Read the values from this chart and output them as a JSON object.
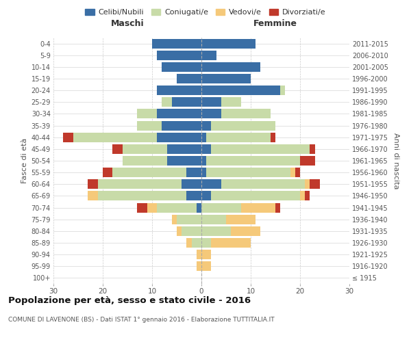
{
  "age_groups": [
    "100+",
    "95-99",
    "90-94",
    "85-89",
    "80-84",
    "75-79",
    "70-74",
    "65-69",
    "60-64",
    "55-59",
    "50-54",
    "45-49",
    "40-44",
    "35-39",
    "30-34",
    "25-29",
    "20-24",
    "15-19",
    "10-14",
    "5-9",
    "0-4"
  ],
  "birth_years": [
    "≤ 1915",
    "1916-1920",
    "1921-1925",
    "1926-1930",
    "1931-1935",
    "1936-1940",
    "1941-1945",
    "1946-1950",
    "1951-1955",
    "1956-1960",
    "1961-1965",
    "1966-1970",
    "1971-1975",
    "1976-1980",
    "1981-1985",
    "1986-1990",
    "1991-1995",
    "1996-2000",
    "2001-2005",
    "2006-2010",
    "2011-2015"
  ],
  "males": {
    "celibi": [
      0,
      0,
      0,
      0,
      0,
      0,
      1,
      3,
      4,
      3,
      7,
      7,
      9,
      8,
      9,
      6,
      9,
      5,
      8,
      9,
      10
    ],
    "coniugati": [
      0,
      0,
      0,
      2,
      4,
      5,
      8,
      18,
      17,
      15,
      9,
      9,
      17,
      5,
      4,
      2,
      0,
      0,
      0,
      0,
      0
    ],
    "vedovi": [
      0,
      1,
      1,
      1,
      1,
      1,
      2,
      2,
      0,
      0,
      0,
      0,
      0,
      0,
      0,
      0,
      0,
      0,
      0,
      0,
      0
    ],
    "divorziati": [
      0,
      0,
      0,
      0,
      0,
      0,
      2,
      0,
      2,
      2,
      0,
      2,
      2,
      0,
      0,
      0,
      0,
      0,
      0,
      0,
      0
    ]
  },
  "females": {
    "nubili": [
      0,
      0,
      0,
      0,
      0,
      0,
      0,
      2,
      4,
      1,
      1,
      2,
      1,
      2,
      4,
      4,
      16,
      10,
      12,
      3,
      11
    ],
    "coniugate": [
      0,
      0,
      0,
      2,
      6,
      5,
      8,
      18,
      17,
      17,
      19,
      20,
      13,
      13,
      10,
      4,
      1,
      0,
      0,
      0,
      0
    ],
    "vedove": [
      0,
      2,
      2,
      8,
      6,
      6,
      7,
      1,
      1,
      1,
      0,
      0,
      0,
      0,
      0,
      0,
      0,
      0,
      0,
      0,
      0
    ],
    "divorziate": [
      0,
      0,
      0,
      0,
      0,
      0,
      1,
      1,
      2,
      1,
      3,
      1,
      1,
      0,
      0,
      0,
      0,
      0,
      0,
      0,
      0
    ]
  },
  "color_celibi": "#3a6ea5",
  "color_coniugati": "#c8dba8",
  "color_vedovi": "#f5c97a",
  "color_divorziati": "#c0392b",
  "xlim": 30,
  "title": "Popolazione per età, sesso e stato civile - 2016",
  "subtitle": "COMUNE DI LAVENONE (BS) - Dati ISTAT 1° gennaio 2016 - Elaborazione TUTTITALIA.IT",
  "ylabel_left": "Fasce di età",
  "ylabel_right": "Anni di nascita",
  "xlabel_left": "Maschi",
  "xlabel_right": "Femmine",
  "bg_color": "#ffffff",
  "grid_color": "#cccccc"
}
